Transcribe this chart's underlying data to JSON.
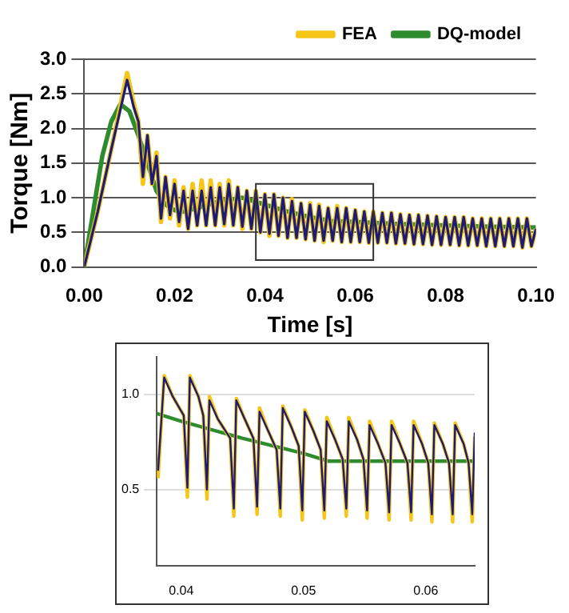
{
  "chart_data": [
    {
      "type": "line",
      "xlabel": "Time [s]",
      "ylabel": "Torque [Nm]",
      "xlim": [
        0,
        0.1
      ],
      "xticks": [
        {
          "value": 0,
          "label": "0.00"
        },
        {
          "value": 0.02,
          "label": "0.02"
        },
        {
          "value": 0.04,
          "label": "0.04"
        },
        {
          "value": 0.06,
          "label": "0.06"
        },
        {
          "value": 0.08,
          "label": "0.08"
        },
        {
          "value": 0.1,
          "label": "0.10"
        }
      ],
      "ylim": [
        0,
        3
      ],
      "yticks": [
        {
          "value": 0,
          "label": "0.0"
        },
        {
          "value": 0.5,
          "label": "0.5"
        },
        {
          "value": 1,
          "label": "1.0"
        },
        {
          "value": 1.5,
          "label": "1.5"
        },
        {
          "value": 2,
          "label": "2.0"
        },
        {
          "value": 2.5,
          "label": "2.5"
        },
        {
          "value": 3,
          "label": "3.0"
        }
      ],
      "grid": "y",
      "legend": "top right",
      "marker": "none",
      "line_style": "solid",
      "series": [
        {
          "name": "FEA",
          "color": "#f5c518",
          "x": [
            0,
            0.003,
            0.006,
            0.0095,
            0.011,
            0.012,
            0.013,
            0.014,
            0.015,
            0.016,
            0.017,
            0.018,
            0.019,
            0.02,
            0.021,
            0.022,
            0.023,
            0.024,
            0.025,
            0.026,
            0.027,
            0.028,
            0.029,
            0.03,
            0.031,
            0.032,
            0.033,
            0.034,
            0.035,
            0.036,
            0.037,
            0.038,
            0.039,
            0.04,
            0.041,
            0.042,
            0.043,
            0.044,
            0.045,
            0.046,
            0.047,
            0.048,
            0.049,
            0.05,
            0.051,
            0.052,
            0.053,
            0.054,
            0.055,
            0.056,
            0.057,
            0.058,
            0.059,
            0.06,
            0.061,
            0.062,
            0.063,
            0.064,
            0.065,
            0.066,
            0.067,
            0.068,
            0.069,
            0.07,
            0.071,
            0.072,
            0.073,
            0.074,
            0.075,
            0.076,
            0.077,
            0.078,
            0.079,
            0.08,
            0.081,
            0.082,
            0.083,
            0.084,
            0.085,
            0.086,
            0.087,
            0.088,
            0.089,
            0.09,
            0.091,
            0.092,
            0.093,
            0.094,
            0.095,
            0.096,
            0.097,
            0.098,
            0.099,
            0.1
          ],
          "values": [
            0,
            0.8,
            1.7,
            2.8,
            2.35,
            2.1,
            1.2,
            1.9,
            1.2,
            1.65,
            0.65,
            1.3,
            0.7,
            1.25,
            0.6,
            1.15,
            0.55,
            1.2,
            0.6,
            1.25,
            0.6,
            1.25,
            0.6,
            1.2,
            0.6,
            1.25,
            0.6,
            1.15,
            0.55,
            1.1,
            0.55,
            1.1,
            0.5,
            1.05,
            0.45,
            1.05,
            0.45,
            1.0,
            0.42,
            0.98,
            0.42,
            0.92,
            0.4,
            0.92,
            0.38,
            0.9,
            0.36,
            0.85,
            0.38,
            0.88,
            0.36,
            0.85,
            0.36,
            0.82,
            0.36,
            0.8,
            0.35,
            0.8,
            0.35,
            0.78,
            0.35,
            0.78,
            0.34,
            0.76,
            0.34,
            0.75,
            0.33,
            0.75,
            0.33,
            0.74,
            0.32,
            0.73,
            0.32,
            0.72,
            0.32,
            0.72,
            0.31,
            0.72,
            0.31,
            0.7,
            0.31,
            0.7,
            0.3,
            0.7,
            0.3,
            0.7,
            0.3,
            0.7,
            0.3,
            0.7,
            0.28,
            0.7,
            0.3,
            0.55
          ]
        },
        {
          "color": "#1c1c78",
          "x": [
            0,
            0.003,
            0.006,
            0.0095,
            0.011,
            0.012,
            0.013,
            0.014,
            0.015,
            0.016,
            0.017,
            0.018,
            0.019,
            0.02,
            0.021,
            0.022,
            0.023,
            0.024,
            0.025,
            0.026,
            0.027,
            0.028,
            0.029,
            0.03,
            0.031,
            0.032,
            0.033,
            0.034,
            0.035,
            0.036,
            0.037,
            0.038,
            0.039,
            0.04,
            0.041,
            0.042,
            0.043,
            0.044,
            0.045,
            0.046,
            0.047,
            0.048,
            0.049,
            0.05,
            0.051,
            0.052,
            0.053,
            0.054,
            0.055,
            0.056,
            0.057,
            0.058,
            0.059,
            0.06,
            0.061,
            0.062,
            0.063,
            0.064,
            0.065,
            0.066,
            0.067,
            0.068,
            0.069,
            0.07,
            0.071,
            0.072,
            0.073,
            0.074,
            0.075,
            0.076,
            0.077,
            0.078,
            0.079,
            0.08,
            0.081,
            0.082,
            0.083,
            0.084,
            0.085,
            0.086,
            0.087,
            0.088,
            0.089,
            0.09,
            0.091,
            0.092,
            0.093,
            0.094,
            0.095,
            0.096,
            0.097,
            0.098,
            0.099,
            0.1
          ],
          "values": [
            0,
            0.8,
            1.7,
            2.7,
            2.3,
            2.1,
            1.3,
            1.9,
            1.2,
            1.6,
            0.7,
            1.3,
            0.75,
            1.2,
            0.65,
            1.1,
            0.55,
            1.1,
            0.6,
            1.1,
            0.6,
            1.15,
            0.6,
            1.15,
            0.62,
            1.2,
            0.6,
            1.15,
            0.58,
            1.1,
            0.55,
            1.1,
            0.5,
            1.05,
            0.48,
            1.05,
            0.45,
            1.0,
            0.42,
            0.95,
            0.42,
            0.92,
            0.4,
            0.9,
            0.38,
            0.88,
            0.38,
            0.85,
            0.38,
            0.85,
            0.36,
            0.85,
            0.36,
            0.82,
            0.36,
            0.8,
            0.35,
            0.8,
            0.35,
            0.78,
            0.35,
            0.78,
            0.34,
            0.76,
            0.34,
            0.75,
            0.33,
            0.75,
            0.33,
            0.74,
            0.32,
            0.73,
            0.32,
            0.72,
            0.32,
            0.72,
            0.31,
            0.72,
            0.31,
            0.7,
            0.31,
            0.7,
            0.3,
            0.7,
            0.3,
            0.7,
            0.3,
            0.7,
            0.3,
            0.7,
            0.28,
            0.7,
            0.3,
            0.55
          ]
        },
        {
          "name": "DQ-model",
          "color": "#2e8b2e",
          "x": [
            0,
            0.002,
            0.004,
            0.006,
            0.008,
            0.01,
            0.012,
            0.014,
            0.016,
            0.018,
            0.02,
            0.022,
            0.025,
            0.03,
            0.035,
            0.04,
            0.045,
            0.05,
            0.055,
            0.06,
            0.07,
            0.08,
            0.09,
            0.1
          ],
          "values": [
            0,
            0.8,
            1.6,
            2.1,
            2.35,
            2.25,
            1.9,
            1.5,
            1.1,
            0.9,
            0.82,
            0.8,
            0.85,
            0.95,
            1.0,
            0.9,
            0.8,
            0.72,
            0.66,
            0.65,
            0.62,
            0.6,
            0.58,
            0.57
          ]
        }
      ]
    },
    {
      "type": "line",
      "xlim": [
        0.038,
        0.064
      ],
      "xticks": [
        0.04,
        0.05,
        0.06
      ],
      "ylim": [
        0.1,
        1.2
      ],
      "yticks": [
        0.5,
        {
          "value": 1,
          "label": "1.0"
        }
      ],
      "grid": "y",
      "marker": "none",
      "line_style": "solid",
      "series": [
        {
          "color": "#f5c518",
          "x": [
            0.0381,
            0.0386,
            0.0393,
            0.0402,
            0.0405,
            0.0407,
            0.0414,
            0.0418,
            0.0421,
            0.0423,
            0.043,
            0.044,
            0.0443,
            0.0445,
            0.0452,
            0.0459,
            0.0462,
            0.0464,
            0.0471,
            0.0478,
            0.0481,
            0.0483,
            0.049,
            0.0496,
            0.0499,
            0.0501,
            0.0508,
            0.0514,
            0.0517,
            0.0519,
            0.0526,
            0.0532,
            0.0535,
            0.0537,
            0.0544,
            0.0549,
            0.0552,
            0.0554,
            0.0561,
            0.0567,
            0.057,
            0.0572,
            0.0579,
            0.0585,
            0.0588,
            0.059,
            0.0597,
            0.0602,
            0.0605,
            0.0607,
            0.0614,
            0.0619,
            0.0622,
            0.0624,
            0.0631,
            0.0635,
            0.0638,
            0.064
          ],
          "values": [
            0.56,
            1.1,
            0.99,
            0.89,
            0.46,
            1.1,
            0.99,
            0.89,
            0.45,
            0.99,
            0.87,
            0.77,
            0.36,
            0.98,
            0.87,
            0.77,
            0.37,
            0.93,
            0.81,
            0.71,
            0.36,
            0.94,
            0.83,
            0.73,
            0.34,
            0.92,
            0.81,
            0.71,
            0.35,
            0.88,
            0.76,
            0.66,
            0.36,
            0.88,
            0.76,
            0.66,
            0.35,
            0.86,
            0.74,
            0.64,
            0.34,
            0.86,
            0.74,
            0.64,
            0.34,
            0.86,
            0.74,
            0.64,
            0.33,
            0.85,
            0.74,
            0.64,
            0.33,
            0.85,
            0.74,
            0.64,
            0.33,
            0.78
          ]
        },
        {
          "color": "#1c1c78",
          "x": [
            0.0381,
            0.0386,
            0.0393,
            0.0402,
            0.0405,
            0.0407,
            0.0414,
            0.0418,
            0.0421,
            0.0423,
            0.043,
            0.044,
            0.0443,
            0.0445,
            0.0452,
            0.0459,
            0.0462,
            0.0464,
            0.0471,
            0.0478,
            0.0481,
            0.0483,
            0.049,
            0.0496,
            0.0499,
            0.0501,
            0.0508,
            0.0514,
            0.0517,
            0.0519,
            0.0526,
            0.0532,
            0.0535,
            0.0537,
            0.0544,
            0.0549,
            0.0552,
            0.0554,
            0.0561,
            0.0567,
            0.057,
            0.0572,
            0.0579,
            0.0585,
            0.0588,
            0.059,
            0.0597,
            0.0602,
            0.0605,
            0.0607,
            0.0614,
            0.0619,
            0.0622,
            0.0624,
            0.0631,
            0.0635,
            0.0638,
            0.064
          ],
          "values": [
            0.6,
            1.09,
            0.99,
            0.89,
            0.51,
            1.09,
            0.99,
            0.89,
            0.5,
            0.97,
            0.87,
            0.77,
            0.4,
            0.97,
            0.87,
            0.77,
            0.41,
            0.91,
            0.81,
            0.71,
            0.4,
            0.93,
            0.83,
            0.73,
            0.39,
            0.91,
            0.81,
            0.71,
            0.39,
            0.86,
            0.76,
            0.66,
            0.4,
            0.86,
            0.76,
            0.66,
            0.39,
            0.84,
            0.74,
            0.64,
            0.38,
            0.84,
            0.74,
            0.64,
            0.38,
            0.84,
            0.74,
            0.64,
            0.37,
            0.84,
            0.74,
            0.64,
            0.37,
            0.84,
            0.74,
            0.64,
            0.37,
            0.8
          ]
        },
        {
          "color": "#2e8b2e",
          "x": [
            0.038,
            0.04,
            0.045,
            0.05,
            0.052,
            0.064
          ],
          "values": [
            0.9,
            0.86,
            0.77,
            0.69,
            0.65,
            0.65
          ]
        }
      ]
    }
  ]
}
